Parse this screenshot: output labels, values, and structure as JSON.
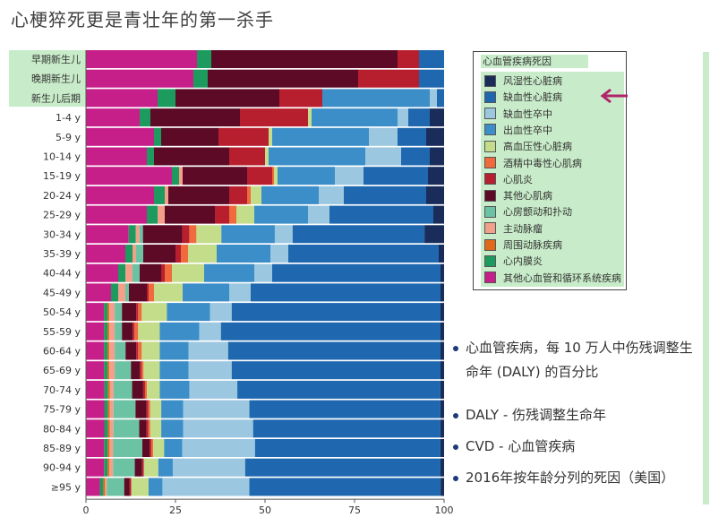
{
  "page": {
    "title": "心梗猝死更是青壮年的第一杀手"
  },
  "chart_data": {
    "type": "bar",
    "orientation": "horizontal",
    "stacked": true,
    "percent": true,
    "title": "",
    "xlabel": "",
    "ylabel": "",
    "xlim": [
      0,
      100
    ],
    "x_ticks": [
      "0",
      "25",
      "50",
      "75",
      "100"
    ],
    "legend_title": "心血管疾病死因",
    "legend_position": "right",
    "categories": [
      "早期新生儿",
      "晚期新生儿",
      "新生儿后期",
      "1-4 y",
      "5-9 y",
      "10-14 y",
      "15-19 y",
      "20-24 y",
      "25-29 y",
      "30-34 y",
      "35-39 y",
      "40-44 y",
      "45-49 y",
      "50-54 y",
      "55-59 y",
      "60-64 y",
      "65-69 y",
      "70-74 y",
      "75-79 y",
      "80-84 y",
      "85-89 y",
      "90-94 y",
      "≥95 y"
    ],
    "highlighted_categories": [
      0,
      1,
      2
    ],
    "series": [
      {
        "name": "其他心血管和循环系统疾病",
        "color": "#c71f8a",
        "values": [
          31,
          30,
          20,
          15,
          19,
          17,
          24,
          19,
          17,
          12,
          11,
          9,
          7,
          5,
          5,
          5,
          5,
          5,
          5,
          5,
          5,
          5,
          4
        ]
      },
      {
        "name": "心内膜炎",
        "color": "#1d9a5e",
        "values": [
          4,
          4,
          5,
          3,
          2,
          2,
          2,
          3,
          3,
          2,
          2,
          2,
          2,
          1,
          1,
          1,
          1,
          1,
          1,
          1,
          1,
          1,
          1
        ]
      },
      {
        "name": "周围动脉疾病",
        "color": "#e06a1a",
        "values": [
          0,
          0,
          0,
          0,
          0,
          0,
          0,
          0,
          0,
          0,
          0,
          0,
          0,
          0.5,
          0.5,
          0.5,
          0.5,
          0.5,
          0.5,
          0.5,
          0.5,
          0.5,
          0.5
        ]
      },
      {
        "name": "主动脉瘤",
        "color": "#f3a08a",
        "values": [
          0,
          0,
          0,
          0,
          0,
          0,
          1,
          1,
          2,
          1,
          1,
          2,
          2,
          1.5,
          1.5,
          1.5,
          1.5,
          1,
          1,
          1,
          1,
          1,
          0.5
        ]
      },
      {
        "name": "心房颤动和扑动",
        "color": "#6bc3a4",
        "values": [
          0,
          0,
          0,
          0,
          0,
          0,
          0,
          0,
          0,
          1,
          2,
          2,
          1,
          2,
          2,
          3,
          4.5,
          5,
          6,
          7,
          8,
          6,
          5
        ]
      },
      {
        "name": "其他心肌病",
        "color": "#5c0a25",
        "values": [
          52,
          42,
          29,
          25,
          16,
          21,
          18,
          17,
          14,
          11,
          9,
          6,
          5,
          4,
          3,
          3,
          2.5,
          3,
          3,
          2,
          2,
          2,
          1.5
        ]
      },
      {
        "name": "心肌炎",
        "color": "#b81f2e",
        "values": [
          6,
          17,
          12,
          19,
          14,
          10,
          7,
          5,
          4,
          2,
          1.5,
          1,
          0.5,
          0.5,
          0.5,
          0.5,
          0.5,
          0.5,
          0.5,
          0.5,
          0.5,
          0.5,
          0.5
        ]
      },
      {
        "name": "酒精中毒性心肌病",
        "color": "#ef6a3c",
        "values": [
          0,
          0,
          0,
          0,
          0,
          0,
          0.5,
          1,
          2,
          2,
          2,
          2,
          1.5,
          1,
          1,
          1,
          0.5,
          0.5,
          0.5,
          0.5,
          0.5,
          0,
          0
        ]
      },
      {
        "name": "高血压性心脏病",
        "color": "#c4dd8a",
        "values": [
          0,
          0,
          0,
          1,
          1,
          1,
          1,
          3,
          5,
          7,
          8,
          9,
          8,
          7,
          6,
          5,
          4.5,
          3.5,
          3,
          3,
          3,
          4,
          5
        ]
      },
      {
        "name": "出血性卒中",
        "color": "#3c8ec8",
        "values": [
          0,
          0,
          30,
          24,
          27,
          27,
          16,
          16,
          15,
          15,
          15,
          14,
          13,
          12,
          11,
          8,
          8,
          8,
          6,
          6,
          5,
          4,
          4
        ]
      },
      {
        "name": "缺血性卒中",
        "color": "#9cc7e0",
        "values": [
          0,
          0,
          2,
          3,
          8,
          10,
          8,
          7,
          6,
          5,
          5,
          5,
          6,
          6,
          6,
          11,
          12,
          13,
          18,
          19,
          20,
          20,
          25
        ]
      },
      {
        "name": "缺血性心脏病",
        "color": "#1f68b0",
        "values": [
          7,
          7,
          2,
          6,
          8,
          8,
          18,
          23,
          29,
          37,
          42,
          47,
          53,
          58,
          61,
          59,
          58,
          55,
          52,
          51,
          51,
          54,
          55
        ]
      },
      {
        "name": "风湿性心脏病",
        "color": "#1a2d5a",
        "values": [
          0,
          0,
          0,
          4,
          5,
          4,
          4.5,
          5,
          3,
          5.5,
          1.5,
          1,
          1,
          1,
          1,
          1,
          1,
          1,
          1,
          1,
          1,
          1,
          1
        ]
      }
    ]
  },
  "legend_order": [
    12,
    11,
    10,
    9,
    8,
    7,
    6,
    5,
    4,
    3,
    2,
    1,
    0
  ],
  "notes": [
    "心血管疾病，每 10 万人中伤残调整生命年 (DALY) 的百分比",
    "DALY - 伤残调整生命年",
    "CVD - 心血管疾病",
    "2016年按年龄分列的死因（美国）"
  ],
  "colors": {
    "highlight": "#c8ecc9",
    "arrow": "#b0246a",
    "bullet": "#1f3a7a"
  }
}
